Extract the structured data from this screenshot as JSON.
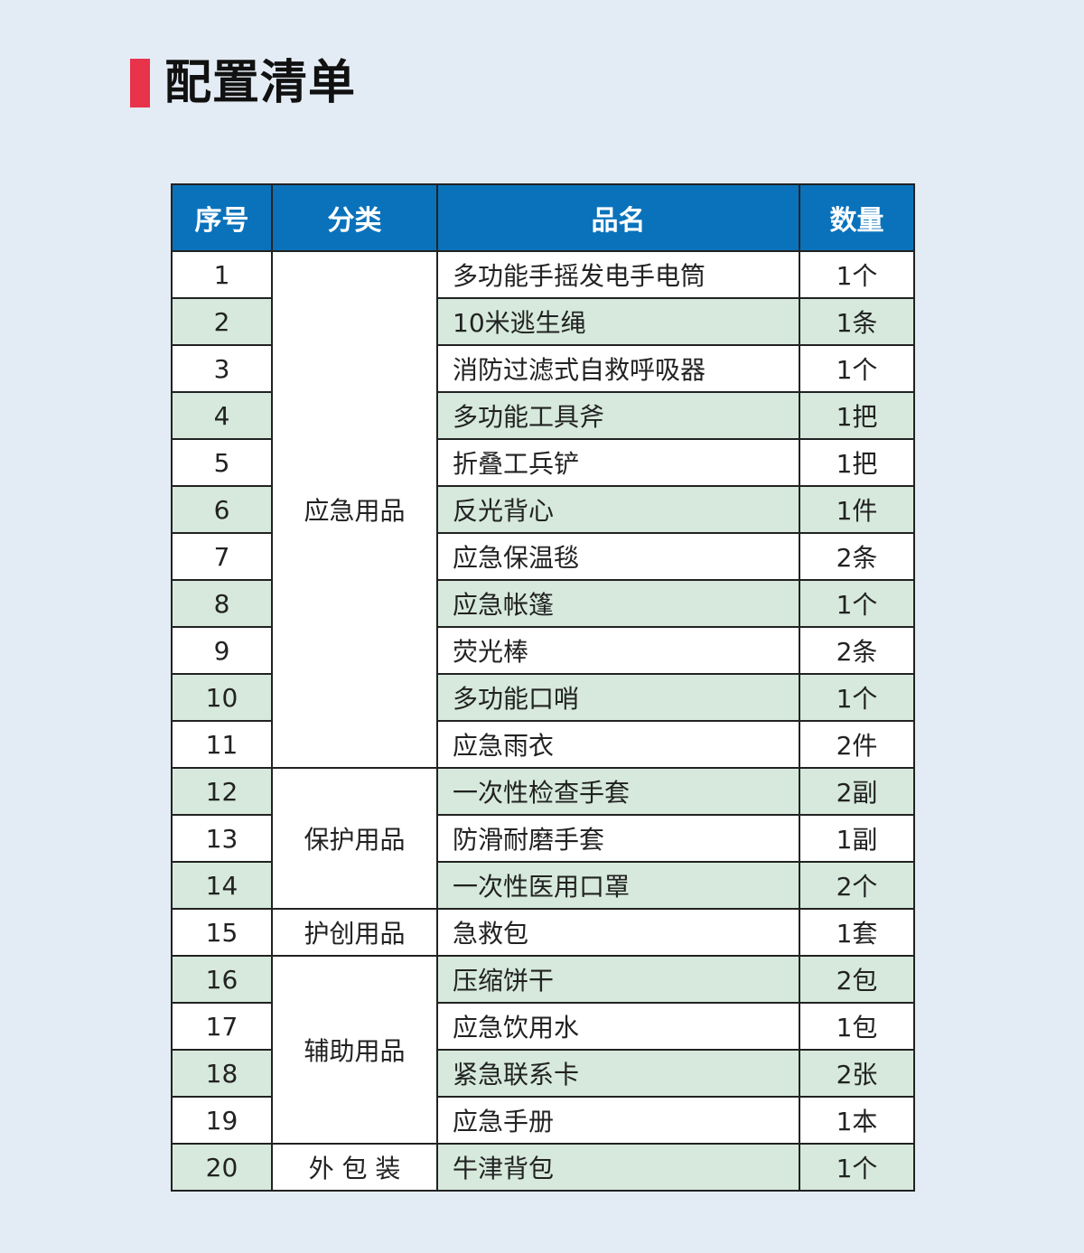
{
  "title": "配置清单",
  "colors": {
    "accent": "#e8334a",
    "header": "#0a72bb",
    "stripe": "#d6e9dc",
    "background": "#e3ecf5"
  },
  "table": {
    "headers": [
      "序号",
      "分类",
      "品名",
      "数量"
    ],
    "groups": [
      {
        "category": "应急用品",
        "items": [
          {
            "no": "1",
            "name": "多功能手摇发电手电筒",
            "qty": "1个"
          },
          {
            "no": "2",
            "name": "10米逃生绳",
            "qty": "1条"
          },
          {
            "no": "3",
            "name": "消防过滤式自救呼吸器",
            "qty": "1个"
          },
          {
            "no": "4",
            "name": "多功能工具斧",
            "qty": "1把"
          },
          {
            "no": "5",
            "name": "折叠工兵铲",
            "qty": "1把"
          },
          {
            "no": "6",
            "name": "反光背心",
            "qty": "1件"
          },
          {
            "no": "7",
            "name": "应急保温毯",
            "qty": "2条"
          },
          {
            "no": "8",
            "name": "应急帐篷",
            "qty": "1个"
          },
          {
            "no": "9",
            "name": "荧光棒",
            "qty": "2条"
          },
          {
            "no": "10",
            "name": "多功能口哨",
            "qty": "1个"
          },
          {
            "no": "11",
            "name": "应急雨衣",
            "qty": "2件"
          }
        ]
      },
      {
        "category": "保护用品",
        "items": [
          {
            "no": "12",
            "name": "一次性检查手套",
            "qty": "2副"
          },
          {
            "no": "13",
            "name": "防滑耐磨手套",
            "qty": "1副"
          },
          {
            "no": "14",
            "name": "一次性医用口罩",
            "qty": "2个"
          }
        ]
      },
      {
        "category": "护创用品",
        "items": [
          {
            "no": "15",
            "name": "急救包",
            "qty": "1套"
          }
        ]
      },
      {
        "category": "辅助用品",
        "items": [
          {
            "no": "16",
            "name": "压缩饼干",
            "qty": "2包"
          },
          {
            "no": "17",
            "name": "应急饮用水",
            "qty": "1包"
          },
          {
            "no": "18",
            "name": "紧急联系卡",
            "qty": "2张"
          },
          {
            "no": "19",
            "name": "应急手册",
            "qty": "1本"
          }
        ]
      },
      {
        "category": "外 包 装",
        "items": [
          {
            "no": "20",
            "name": "牛津背包",
            "qty": "1个"
          }
        ]
      }
    ]
  }
}
